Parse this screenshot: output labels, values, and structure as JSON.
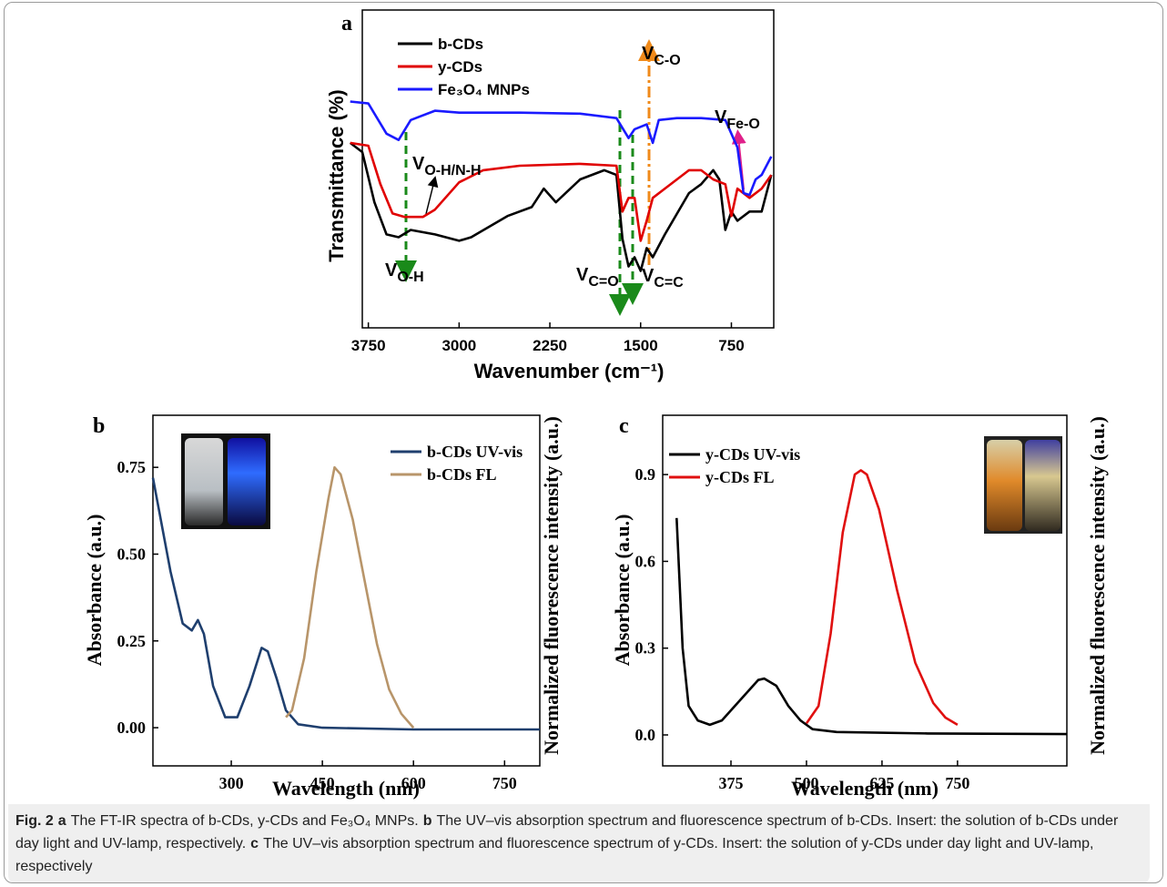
{
  "chart_data": [
    {
      "type": "line",
      "label": "a",
      "y_label": "Transmittance (%)",
      "x_label": "Wavenumber (cm⁻¹)",
      "xlim": [
        3800,
        400
      ],
      "xticks": [
        3750,
        3000,
        2250,
        1500,
        750
      ],
      "ylim": [
        0,
        100
      ],
      "series": [
        {
          "name": "b-CDs",
          "color": "#000000",
          "x": [
            3900,
            3800,
            3700,
            3600,
            3500,
            3400,
            3200,
            3000,
            2900,
            2600,
            2400,
            2300,
            2200,
            2000,
            1800,
            1700,
            1650,
            1600,
            1550,
            1500,
            1450,
            1400,
            1300,
            1100,
            1000,
            900,
            850,
            800,
            750,
            700,
            600,
            500,
            420
          ],
          "values": [
            58.2,
            55.3,
            39.5,
            29.4,
            28.5,
            30.8,
            29.4,
            27.4,
            28.5,
            35.2,
            38.0,
            43.8,
            39.5,
            46.7,
            49.6,
            48.1,
            28.0,
            19.3,
            22.2,
            17.9,
            25.1,
            22.2,
            29.4,
            42.4,
            45.2,
            49.6,
            46.7,
            30.8,
            36.6,
            33.7,
            36.6,
            36.6,
            48.1
          ]
        },
        {
          "name": "y-CDs",
          "color": "#e00000",
          "x": [
            3900,
            3750,
            3650,
            3550,
            3450,
            3300,
            3200,
            3000,
            2800,
            2500,
            2000,
            1700,
            1650,
            1600,
            1550,
            1500,
            1450,
            1400,
            1300,
            1100,
            1000,
            900,
            800,
            750,
            700,
            600,
            500,
            420
          ],
          "values": [
            58.2,
            57.3,
            45.2,
            36.0,
            34.9,
            34.9,
            37.2,
            45.8,
            49.6,
            51.0,
            51.6,
            51.0,
            36.6,
            40.9,
            40.9,
            27.4,
            33.7,
            40.9,
            43.8,
            49.6,
            49.6,
            46.7,
            45.2,
            35.2,
            43.8,
            40.9,
            43.8,
            48.1
          ]
        },
        {
          "name": "Fe₃O₄ MNPs",
          "color": "#1a1aff",
          "x": [
            3900,
            3750,
            3600,
            3500,
            3400,
            3200,
            3000,
            2500,
            2000,
            1700,
            1600,
            1550,
            1450,
            1400,
            1350,
            1200,
            1000,
            800,
            700,
            650,
            600,
            550,
            500,
            420
          ],
          "values": [
            71.2,
            70.6,
            61.1,
            59.1,
            65.4,
            68.3,
            67.7,
            67.7,
            67.4,
            66.0,
            59.7,
            62.5,
            64.0,
            58.2,
            65.4,
            66.0,
            66.0,
            65.4,
            56.8,
            42.4,
            41.8,
            46.7,
            48.1,
            53.9
          ]
        }
      ],
      "annotations": [
        {
          "text": "V",
          "subscript": "O-H"
        },
        {
          "text": "V",
          "subscript": "O-H/N-H"
        },
        {
          "text": "V",
          "subscript": "C=O"
        },
        {
          "text": "V",
          "subscript": "C=C"
        },
        {
          "text": "V",
          "subscript": "C-O"
        },
        {
          "text": "V",
          "subscript": "Fe-O"
        }
      ]
    },
    {
      "type": "line",
      "label": "b",
      "y_label": "Absorbance (a.u.)",
      "y2_label": "Normalized fluorescence intensity (a.u.)",
      "x_label": "Wavelength (nm)",
      "xlim": [
        171,
        808
      ],
      "xticks": [
        300,
        450,
        600,
        750
      ],
      "ylim": [
        -0.11,
        0.9
      ],
      "yticks": [
        {
          "value": 0,
          "label": "0.00"
        },
        0.25,
        {
          "value": 0.5,
          "label": "0.50"
        },
        0.75
      ],
      "series": [
        {
          "name": "b-CDs UV-vis",
          "color": "#1f3f6e",
          "x": [
            171,
            200,
            220,
            235,
            245,
            255,
            270,
            290,
            310,
            330,
            350,
            360,
            375,
            390,
            410,
            450,
            600,
            808
          ],
          "values": [
            0.72,
            0.45,
            0.3,
            0.28,
            0.31,
            0.27,
            0.12,
            0.03,
            0.03,
            0.12,
            0.23,
            0.22,
            0.14,
            0.05,
            0.01,
            0,
            -0.005,
            -0.005
          ]
        },
        {
          "name": "b-CDs FL",
          "color": "#b8956a",
          "x": [
            390,
            400,
            420,
            440,
            460,
            470,
            480,
            500,
            520,
            540,
            560,
            580,
            600
          ],
          "values": [
            0.03,
            0.05,
            0.2,
            0.45,
            0.66,
            0.75,
            0.73,
            0.6,
            0.42,
            0.24,
            0.11,
            0.04,
            0
          ]
        }
      ]
    },
    {
      "type": "line",
      "label": "c",
      "y_label": "Absorbance (a.u.)",
      "y2_label": "Normalized fluorescence intensity (a.u.)",
      "x_label": "Wavelength (nm)",
      "xlim": [
        262,
        931
      ],
      "xticks": [
        375,
        500,
        625,
        750
      ],
      "ylim": [
        -0.107,
        1.105
      ],
      "yticks": [
        {
          "value": 0,
          "label": "0.0"
        },
        0.3,
        0.6,
        0.9
      ],
      "series": [
        {
          "name": "y-CDs UV-vis",
          "color": "#000000",
          "x": [
            285,
            295,
            305,
            320,
            340,
            360,
            390,
            420,
            430,
            450,
            470,
            490,
            510,
            550,
            700,
            931
          ],
          "values": [
            0.75,
            0.3,
            0.1,
            0.05,
            0.035,
            0.05,
            0.12,
            0.19,
            0.195,
            0.17,
            0.1,
            0.05,
            0.02,
            0.01,
            0.005,
            0.003
          ]
        },
        {
          "name": "y-CDs FL",
          "color": "#e01010",
          "x": [
            500,
            520,
            540,
            560,
            580,
            590,
            600,
            620,
            650,
            680,
            710,
            730,
            750
          ],
          "values": [
            0.04,
            0.1,
            0.35,
            0.7,
            0.9,
            0.915,
            0.9,
            0.78,
            0.5,
            0.25,
            0.11,
            0.06,
            0.035
          ]
        }
      ]
    }
  ],
  "caption": {
    "label": "Fig. 2",
    "parts": [
      {
        "key": "a",
        "text": "The FT-IR spectra of b-CDs, y-CDs and Fe₃O₄ MNPs."
      },
      {
        "key": "b",
        "text": "The UV–vis absorption spectrum and fluorescence spectrum of b-CDs. Insert: the solution of b-CDs under day light and UV-lamp, respectively."
      },
      {
        "key": "c",
        "text": "The UV–vis absorption spectrum and fluorescence spectrum of y-CDs. Insert: the solution of y-CDs under day light and UV-lamp, respectively"
      }
    ]
  }
}
